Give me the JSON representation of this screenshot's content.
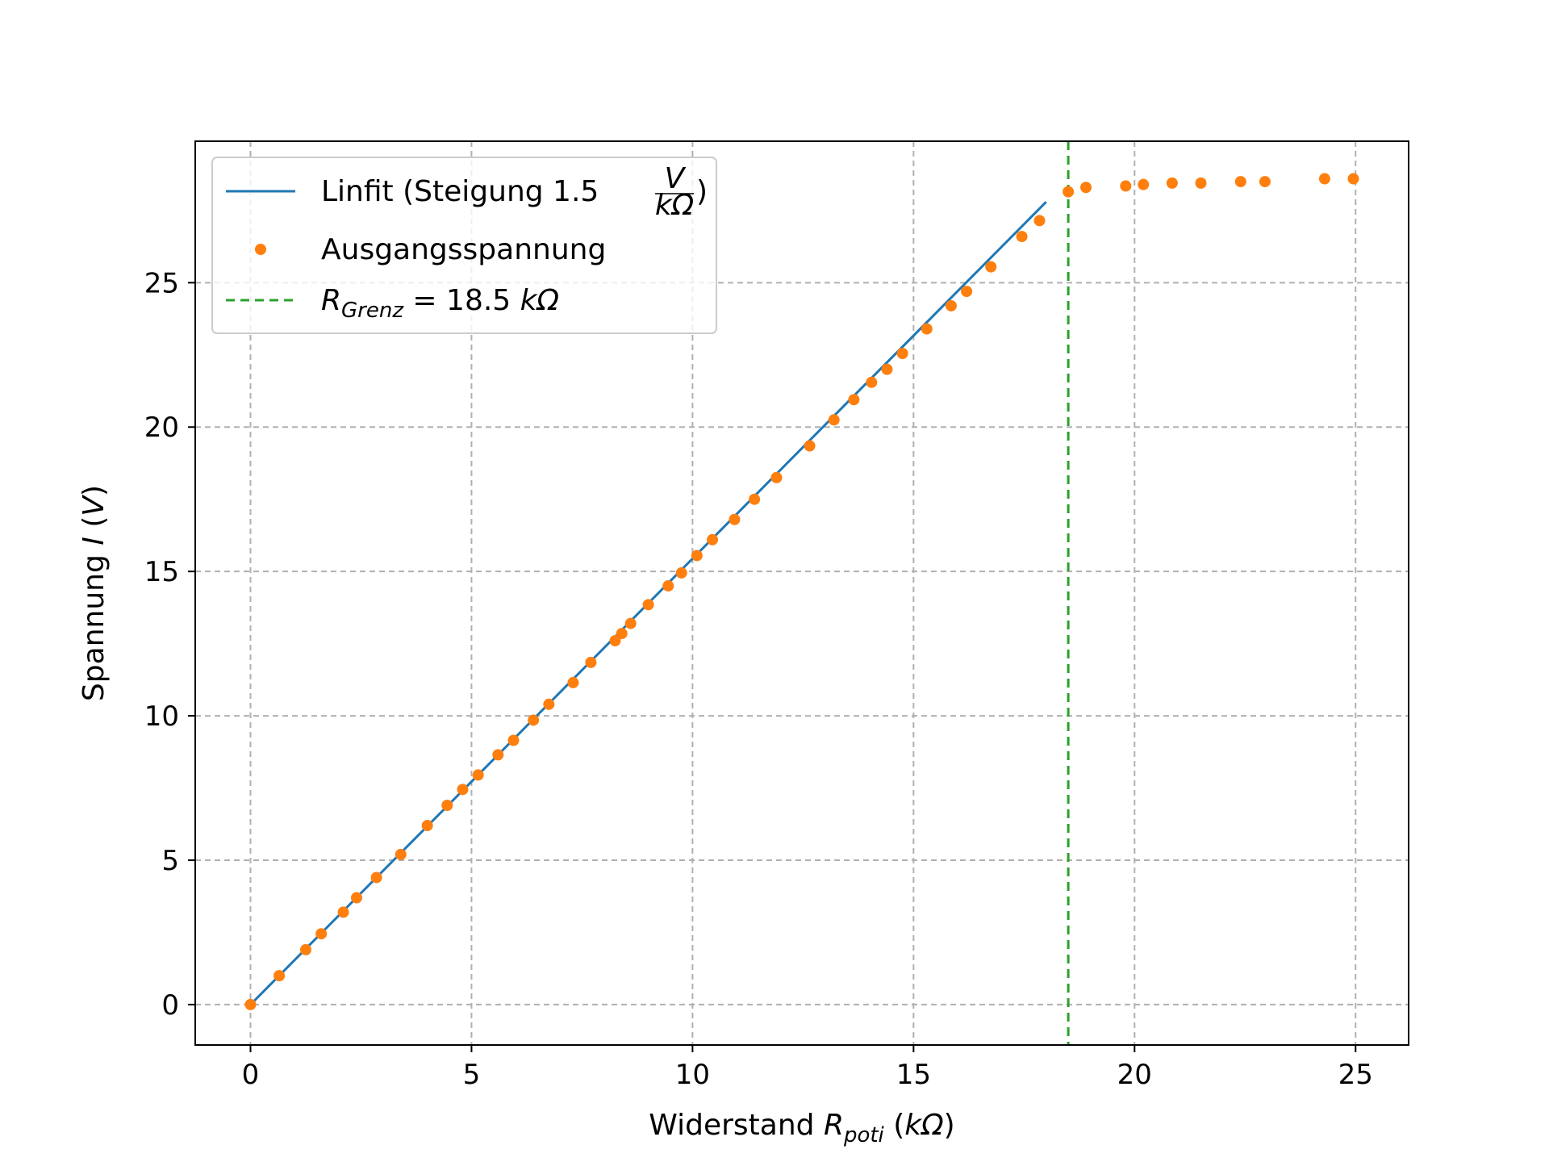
{
  "chart_data": {
    "type": "scatter",
    "xlabel": {
      "prefix": "Widerstand ",
      "var": "R",
      "sub": "poti",
      "suffix_italic": "kΩ",
      "suffix_open": " (",
      "suffix_close": ")"
    },
    "ylabel": {
      "prefix": "Spannung ",
      "var": "I",
      "open": " (",
      "unit": "V",
      "close": ")"
    },
    "xlim": [
      -1.25,
      26.2
    ],
    "ylim": [
      -1.4,
      29.9
    ],
    "xticks": [
      0,
      5,
      10,
      15,
      20,
      25
    ],
    "yticks": [
      0,
      5,
      10,
      15,
      20,
      25
    ],
    "grid": true,
    "legend_placement": "top-left",
    "colors": {
      "fit": "#1f77b4",
      "points": "#ff7f0e",
      "limit": "#2ca02c",
      "grid": "#b0b0b0"
    },
    "series": [
      {
        "kind": "line",
        "legend": {
          "text": "Linfit (Steigung 1.5 ",
          "frac_num": "V",
          "frac_den": "kΩ",
          "close": ")"
        },
        "x": [
          0,
          18.0
        ],
        "y": [
          0,
          27.8
        ]
      },
      {
        "kind": "points",
        "name": "Ausgangsspannung",
        "x": [
          0,
          0.65,
          1.25,
          1.6,
          2.1,
          2.4,
          2.85,
          3.4,
          4.0,
          4.45,
          4.8,
          5.15,
          5.6,
          5.95,
          6.4,
          6.75,
          7.3,
          7.7,
          8.25,
          8.4,
          8.6,
          9.0,
          9.45,
          9.75,
          10.1,
          10.45,
          10.95,
          11.4,
          11.9,
          12.65,
          13.2,
          13.65,
          14.05,
          14.4,
          14.75,
          15.3,
          15.85,
          16.2,
          16.75,
          17.45,
          17.85,
          18.5,
          18.9,
          19.8,
          20.2,
          20.85,
          21.5,
          22.4,
          22.95,
          24.3,
          24.95
        ],
        "y": [
          0,
          1.0,
          1.9,
          2.45,
          3.2,
          3.7,
          4.4,
          5.2,
          6.2,
          6.9,
          7.45,
          7.95,
          8.65,
          9.15,
          9.85,
          10.4,
          11.15,
          11.85,
          12.6,
          12.85,
          13.2,
          13.85,
          14.5,
          14.95,
          15.55,
          16.1,
          16.8,
          17.5,
          18.25,
          19.35,
          20.25,
          20.95,
          21.55,
          22.0,
          22.55,
          23.4,
          24.2,
          24.7,
          25.55,
          26.6,
          27.15,
          28.15,
          28.3,
          28.35,
          28.4,
          28.45,
          28.45,
          28.5,
          28.5,
          28.6,
          28.6
        ]
      },
      {
        "kind": "vline",
        "legend": {
          "var": "R",
          "sub": "Grenz",
          "eq": " =  18.5 ",
          "unit_italic": "kΩ"
        },
        "x": 18.5
      }
    ]
  }
}
